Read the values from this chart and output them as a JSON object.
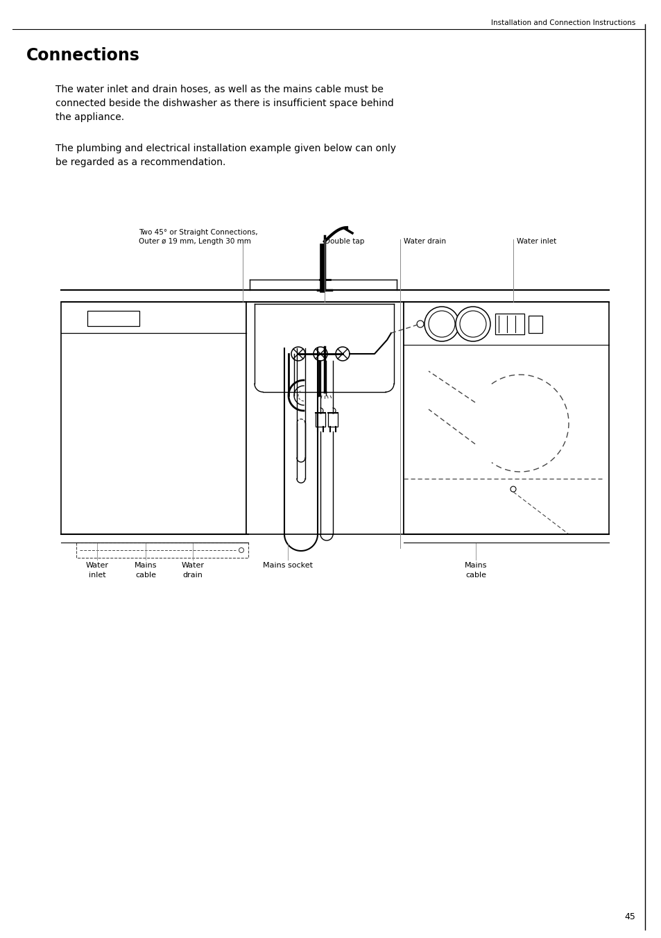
{
  "page_header": "Installation and Connection Instructions",
  "page_number": "45",
  "title": "Connections",
  "body_text_1": "The water inlet and drain hoses, as well as the mains cable must be\nconnected beside the dishwasher as there is insufficient space behind\nthe appliance.",
  "body_text_2": "The plumbing and electrical installation example given below can only\nbe regarded as a recommendation.",
  "label1_line1": "Two 45° or Straight Connections,",
  "label1_line2": "Outer ø 19 mm, Length 30 mm",
  "label2": "Double tap",
  "label3": "Water drain",
  "label4": "Water inlet",
  "bl1a": "Water",
  "bl1b": "inlet",
  "bl2a": "Mains",
  "bl2b": "cable",
  "bl3a": "Water",
  "bl3b": "drain",
  "bl4": "Mains socket",
  "bl5a": "Mains",
  "bl5b": "cable",
  "bg_color": "#ffffff",
  "text_color": "#000000"
}
